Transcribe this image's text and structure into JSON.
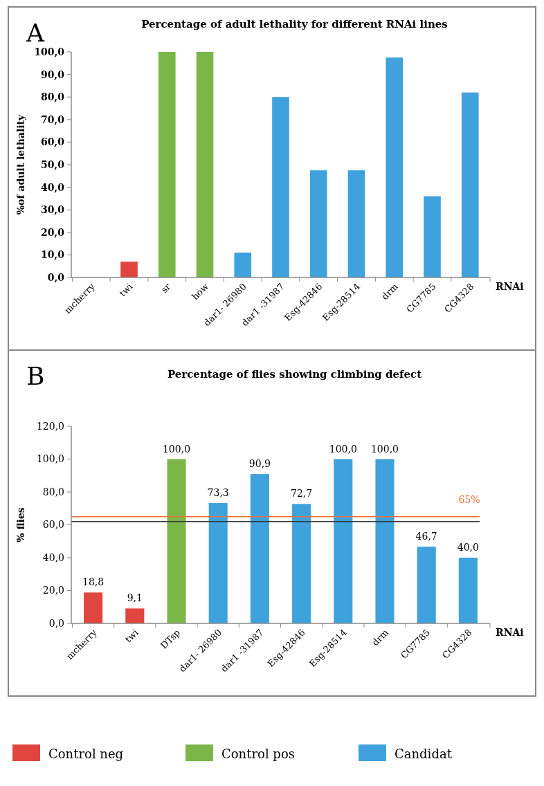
{
  "chart_data": [
    {
      "type": "bar",
      "title": "Percentage of adult lethality for different RNAi lines",
      "annotations": [
        "A"
      ],
      "ylabel": "%of adult lethality",
      "xlabel": "RNAi",
      "categories": [
        "mcherry",
        "twi",
        "sr",
        "how",
        "dar1- 26980",
        "dar1 -31987",
        "Esg-42846",
        "Esg-28514",
        "drm",
        "CG7785",
        "CG4328"
      ],
      "series": [
        {
          "color": "#e0463e",
          "values": [
            0,
            7,
            null,
            null,
            null,
            null,
            null,
            null,
            null,
            null,
            null
          ]
        },
        {
          "color": "#7ab648",
          "values": [
            null,
            null,
            100,
            100,
            null,
            null,
            null,
            null,
            null,
            null,
            null
          ]
        },
        {
          "color": "#3fa2dc",
          "values": [
            null,
            null,
            null,
            null,
            11,
            80,
            47.5,
            47.5,
            97.5,
            36,
            82
          ]
        }
      ],
      "ylim": [
        0,
        100
      ],
      "yticks": [
        {
          "value": 0,
          "label": "0,0"
        },
        {
          "value": 10,
          "label": "10,0"
        },
        {
          "value": 20,
          "label": "20,0"
        },
        {
          "value": 30,
          "label": "30,0"
        },
        {
          "value": 40,
          "label": "40,0"
        },
        {
          "value": 50,
          "label": "50,0"
        },
        {
          "value": 60,
          "label": "60,0"
        },
        {
          "value": 70,
          "label": "70,0"
        },
        {
          "value": 80,
          "label": "80,0"
        },
        {
          "value": 90,
          "label": "90,0"
        },
        {
          "value": 100,
          "label": "100,0"
        }
      ],
      "grid": false,
      "legend": false
    },
    {
      "type": "bar",
      "title": "Percentage of flies showing climbing  defect",
      "annotations": [
        "B"
      ],
      "ylabel": "% flies",
      "xlabel": "RNAi",
      "categories": [
        "mcherry",
        "twi",
        "DTsp",
        "dar1- 26980",
        "dar1 -31987",
        "Esg-42846",
        "Esg-28514",
        "drm",
        "CG7785",
        "CG4328"
      ],
      "series": [
        {
          "name": "Control neg",
          "color": "#e0463e",
          "values": [
            18.8,
            9.1,
            null,
            null,
            null,
            null,
            null,
            null,
            null,
            null
          ],
          "value_labels": [
            "18,8",
            "9,1",
            null,
            null,
            null,
            null,
            null,
            null,
            null,
            null
          ]
        },
        {
          "name": "Control pos",
          "color": "#7ab648",
          "values": [
            null,
            null,
            100,
            null,
            null,
            null,
            null,
            null,
            null,
            null
          ],
          "value_labels": [
            null,
            null,
            "100,0",
            null,
            null,
            null,
            null,
            null,
            null,
            null
          ]
        },
        {
          "name": "Candidat",
          "color": "#3fa2dc",
          "values": [
            null,
            null,
            null,
            73.3,
            90.9,
            72.7,
            100,
            100,
            46.7,
            40
          ],
          "value_labels": [
            null,
            null,
            null,
            "73,3",
            "90,9",
            "72,7",
            "100,0",
            "100,0",
            "46,7",
            "40,0"
          ]
        }
      ],
      "ylim": [
        0,
        120
      ],
      "yticks": [
        {
          "value": 0,
          "label": "0,0"
        },
        {
          "value": 20,
          "label": "20,0"
        },
        {
          "value": 40,
          "label": "40,0"
        },
        {
          "value": 60,
          "label": "60,0"
        },
        {
          "value": 80,
          "label": "80,0"
        },
        {
          "value": 100,
          "label": "100,0"
        },
        {
          "value": 120,
          "label": "120,0"
        }
      ],
      "ref_lines": [
        {
          "axis": "y",
          "value": 65,
          "label": "65%",
          "color": "#e8703a"
        },
        {
          "axis": "y",
          "value": 62,
          "color": "#333333"
        }
      ],
      "grid": false,
      "legend": "bottom"
    }
  ]
}
